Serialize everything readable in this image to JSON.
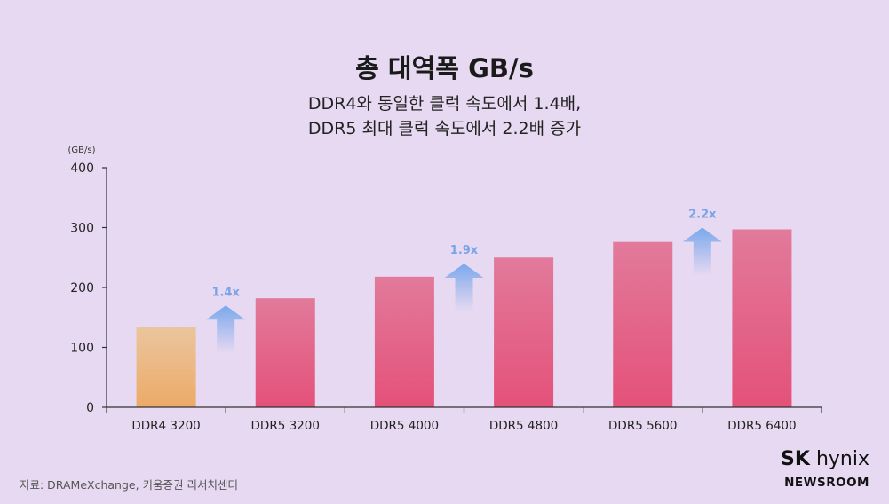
{
  "chart_data": {
    "type": "bar",
    "title": "총 대역폭 GB/s",
    "subtitle_lines": [
      "DDR4와 동일한 클럭 속도에서 1.4배,",
      "DDR5 최대 클럭 속도에서 2.2배 증가"
    ],
    "unit_label": "(GB/s)",
    "categories": [
      "DDR4 3200",
      "DDR5 3200",
      "DDR5 4000",
      "DDR5 4800",
      "DDR5 5600",
      "DDR5 6400"
    ],
    "values": [
      134,
      182,
      218,
      250,
      276,
      297
    ],
    "ylim": [
      0,
      400
    ],
    "yticks": [
      0,
      100,
      200,
      300,
      400
    ],
    "grid": false,
    "annotations": [
      {
        "label": "1.4x",
        "between": [
          0,
          1
        ],
        "value": 170
      },
      {
        "label": "1.9x",
        "between": [
          2,
          3
        ],
        "value": 240
      },
      {
        "label": "2.2x",
        "between": [
          4,
          5
        ],
        "value": 300
      }
    ],
    "colors": {
      "ddr4_top": "#ebc59e",
      "ddr4_bottom": "#ecaa67",
      "ddr5_top": "#e27a9b",
      "ddr5_bottom": "#e45179",
      "arrow": "#7aa8ec",
      "annotation_text": "#7aa4e8"
    }
  },
  "source": "자료: DRAMeXchange,  키움증권 리서치센터",
  "logo": {
    "brand_bold": "SK",
    "brand_rest": "hynix",
    "sub": "NEWSROOM"
  }
}
